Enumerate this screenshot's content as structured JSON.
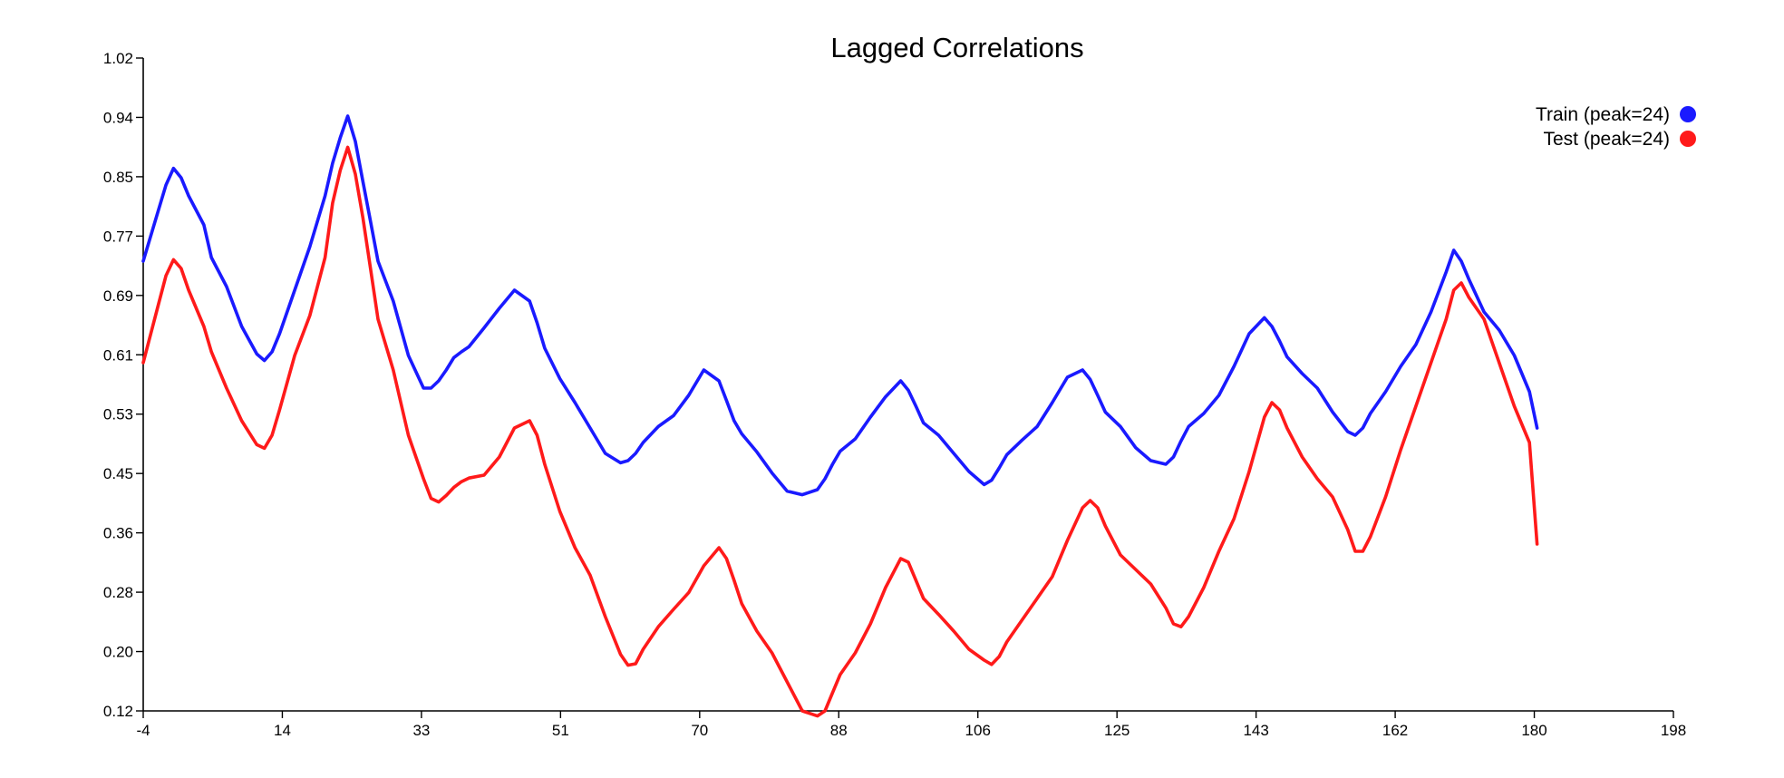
{
  "chart_data": {
    "type": "line",
    "title": "Lagged Correlations",
    "xlabel": "",
    "ylabel": "",
    "xlim": [
      -4,
      198
    ],
    "ylim": [
      0.12,
      1.02
    ],
    "x_ticks": [
      "-4",
      "14",
      "33",
      "51",
      "70",
      "88",
      "106",
      "125",
      "143",
      "162",
      "180",
      "198"
    ],
    "y_ticks": [
      "0.12",
      "0.20",
      "0.28",
      "0.36",
      "0.45",
      "0.53",
      "0.61",
      "0.69",
      "0.77",
      "0.85",
      "0.94",
      "1.02"
    ],
    "grid": false,
    "legend_position": "top-right",
    "series": [
      {
        "name": "Train (peak=24)",
        "color": "#1a1aff",
        "x": [
          -4,
          -2,
          -1,
          0,
          1,
          2,
          4,
          5,
          7,
          9,
          11,
          12,
          13,
          14,
          16,
          18,
          20,
          21,
          22,
          23,
          24,
          25,
          26,
          27,
          29,
          31,
          33,
          34,
          35,
          36,
          37,
          38,
          39,
          41,
          43,
          45,
          47,
          48,
          49,
          51,
          53,
          55,
          57,
          59,
          60,
          61,
          62,
          64,
          66,
          68,
          70,
          72,
          73,
          74,
          75,
          77,
          79,
          81,
          83,
          85,
          86,
          87,
          88,
          90,
          92,
          94,
          96,
          97,
          98,
          99,
          101,
          103,
          105,
          107,
          108,
          109,
          110,
          112,
          114,
          116,
          118,
          120,
          121,
          122,
          123,
          125,
          127,
          129,
          131,
          132,
          133,
          134,
          136,
          138,
          140,
          142,
          144,
          145,
          146,
          147,
          149,
          151,
          153,
          155,
          156,
          157,
          158,
          160,
          162,
          164,
          166,
          168,
          169,
          170,
          171,
          173,
          175,
          177,
          179,
          180
        ],
        "values": [
          0.74,
          0.81,
          0.845,
          0.868,
          0.855,
          0.83,
          0.79,
          0.745,
          0.705,
          0.65,
          0.612,
          0.603,
          0.615,
          0.64,
          0.7,
          0.76,
          0.83,
          0.875,
          0.91,
          0.94,
          0.905,
          0.85,
          0.795,
          0.74,
          0.685,
          0.61,
          0.565,
          0.565,
          0.575,
          0.59,
          0.607,
          0.615,
          0.622,
          0.648,
          0.675,
          0.7,
          0.685,
          0.655,
          0.62,
          0.578,
          0.545,
          0.51,
          0.475,
          0.462,
          0.465,
          0.475,
          0.49,
          0.512,
          0.527,
          0.555,
          0.59,
          0.575,
          0.548,
          0.52,
          0.502,
          0.477,
          0.448,
          0.423,
          0.418,
          0.425,
          0.44,
          0.46,
          0.478,
          0.495,
          0.525,
          0.553,
          0.575,
          0.562,
          0.54,
          0.517,
          0.5,
          0.475,
          0.45,
          0.432,
          0.438,
          0.455,
          0.473,
          0.493,
          0.512,
          0.545,
          0.58,
          0.59,
          0.577,
          0.555,
          0.532,
          0.512,
          0.483,
          0.465,
          0.46,
          0.47,
          0.492,
          0.512,
          0.53,
          0.555,
          0.595,
          0.64,
          0.662,
          0.65,
          0.63,
          0.608,
          0.585,
          0.565,
          0.532,
          0.505,
          0.5,
          0.51,
          0.53,
          0.56,
          0.595,
          0.625,
          0.67,
          0.725,
          0.755,
          0.74,
          0.715,
          0.67,
          0.645,
          0.61,
          0.56,
          0.51
        ]
      },
      {
        "name": "Test (peak=24)",
        "color": "#ff1a1a",
        "x": [
          -4,
          -2,
          -1,
          0,
          1,
          2,
          4,
          5,
          7,
          9,
          11,
          12,
          13,
          14,
          16,
          18,
          20,
          21,
          22,
          23,
          24,
          25,
          26,
          27,
          29,
          31,
          33,
          34,
          35,
          36,
          37,
          38,
          39,
          41,
          43,
          45,
          47,
          48,
          49,
          51,
          53,
          55,
          57,
          59,
          60,
          61,
          62,
          64,
          66,
          68,
          70,
          72,
          73,
          74,
          75,
          77,
          79,
          81,
          83,
          85,
          86,
          87,
          88,
          90,
          92,
          94,
          96,
          97,
          98,
          99,
          101,
          103,
          105,
          107,
          108,
          109,
          110,
          112,
          114,
          116,
          118,
          120,
          121,
          122,
          123,
          125,
          127,
          129,
          131,
          132,
          133,
          134,
          136,
          138,
          140,
          142,
          144,
          145,
          146,
          147,
          149,
          151,
          153,
          155,
          156,
          157,
          158,
          160,
          162,
          164,
          166,
          168,
          169,
          170,
          171,
          173,
          175,
          177,
          179,
          180
        ],
        "values": [
          0.6,
          0.68,
          0.72,
          0.742,
          0.73,
          0.7,
          0.65,
          0.615,
          0.565,
          0.52,
          0.487,
          0.482,
          0.5,
          0.535,
          0.61,
          0.665,
          0.745,
          0.82,
          0.865,
          0.897,
          0.86,
          0.8,
          0.73,
          0.66,
          0.59,
          0.5,
          0.44,
          0.413,
          0.408,
          0.417,
          0.428,
          0.436,
          0.441,
          0.445,
          0.47,
          0.51,
          0.52,
          0.5,
          0.46,
          0.395,
          0.345,
          0.307,
          0.25,
          0.198,
          0.183,
          0.185,
          0.205,
          0.236,
          0.26,
          0.283,
          0.32,
          0.345,
          0.33,
          0.3,
          0.268,
          0.23,
          0.2,
          0.16,
          0.12,
          0.113,
          0.12,
          0.145,
          0.17,
          0.2,
          0.24,
          0.29,
          0.33,
          0.325,
          0.3,
          0.275,
          0.253,
          0.23,
          0.205,
          0.19,
          0.184,
          0.195,
          0.215,
          0.245,
          0.275,
          0.305,
          0.355,
          0.4,
          0.41,
          0.4,
          0.375,
          0.335,
          0.315,
          0.295,
          0.262,
          0.24,
          0.236,
          0.25,
          0.29,
          0.34,
          0.385,
          0.45,
          0.525,
          0.545,
          0.535,
          0.51,
          0.47,
          0.44,
          0.415,
          0.37,
          0.34,
          0.34,
          0.36,
          0.415,
          0.48,
          0.54,
          0.6,
          0.66,
          0.7,
          0.71,
          0.69,
          0.66,
          0.6,
          0.54,
          0.49,
          0.35
        ]
      }
    ]
  }
}
